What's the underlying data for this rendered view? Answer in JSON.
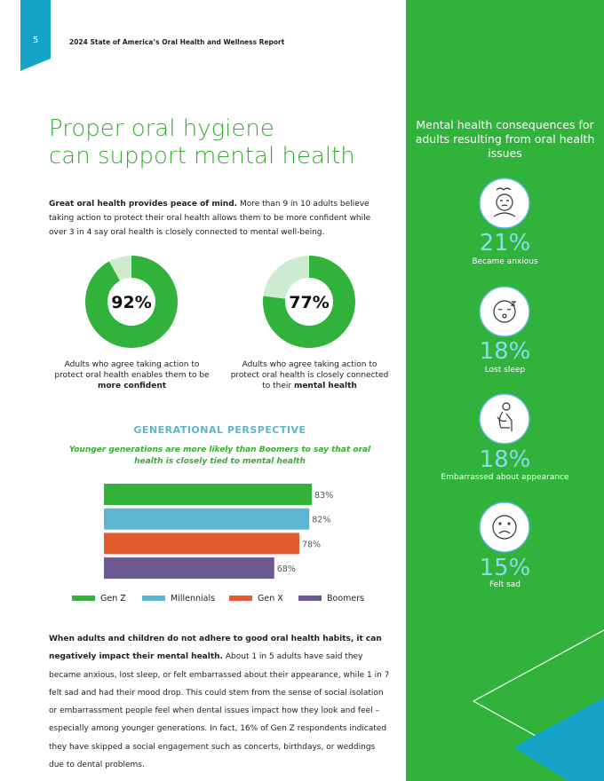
{
  "header": {
    "page_number": "5",
    "report_title": "2024 State of America’s Oral Health and Wellness Report"
  },
  "headline": [
    "Proper oral hygiene",
    "can support mental health"
  ],
  "intro": {
    "bold": "Great oral health provides peace of mind.",
    "text": "More than 9 in 10 adults believe taking action to protect their oral health allows them to be more confident while over 3 in 4 say oral health is closely connected to mental well-being."
  },
  "chart_data": [
    {
      "type": "donut",
      "values": [
        92,
        8
      ],
      "value_labels": [
        "92%",
        null
      ],
      "colors": [
        "#30b23b",
        "#cdeccf"
      ],
      "caption": "Adults who agree taking action to protect oral health enables them to be",
      "caption_bold": "more confident"
    },
    {
      "type": "donut",
      "values": [
        77,
        23
      ],
      "value_labels": [
        "77%",
        null
      ],
      "colors": [
        "#30b23b",
        "#cdeccf"
      ],
      "caption": "Adults who agree taking action to protect oral health is closely connected to their",
      "caption_bold": "mental health"
    },
    {
      "type": "hbar",
      "title": "GENERATIONAL PERSPECTIVE",
      "subtitle": "Younger generations are more likely than Boomers to say that oral health is closely tied to mental health",
      "categories": [
        "Gen Z",
        "Millennials",
        "Gen X",
        "Boomers"
      ],
      "values": [
        83,
        82,
        78,
        68
      ],
      "value_labels": [
        "83%",
        "82%",
        "78%",
        "68%"
      ],
      "colors": [
        "#30b23b",
        "#5bb6d1",
        "#e25a2e",
        "#6e5a92"
      ],
      "xlim": [
        0,
        100
      ]
    }
  ],
  "body": {
    "bold": "When adults and children do not adhere to good oral health habits, it can negatively impact their mental health.",
    "text": "About 1 in 5 adults have said they became anxious, lost sleep, or felt embarrassed about their appearance, while 1 in 7 felt sad and had their mood drop. This could stem from the sense of social isolation or embarrassment people feel when dental issues impact how they look and feel – especially among younger generations. In fact, 16% of Gen Z respondents indicated they have skipped a social engagement such as concerts, birthdays, or weddings due to dental problems."
  },
  "sidebar": {
    "title": "Mental health consequences for adults resulting from oral health issues",
    "stats": [
      {
        "value": "21%",
        "label": "Became anxious"
      },
      {
        "value": "18%",
        "label": "Lost sleep"
      },
      {
        "value": "18%",
        "label": "Embarrassed about appearance"
      },
      {
        "value": "15%",
        "label": "Felt sad"
      }
    ]
  }
}
